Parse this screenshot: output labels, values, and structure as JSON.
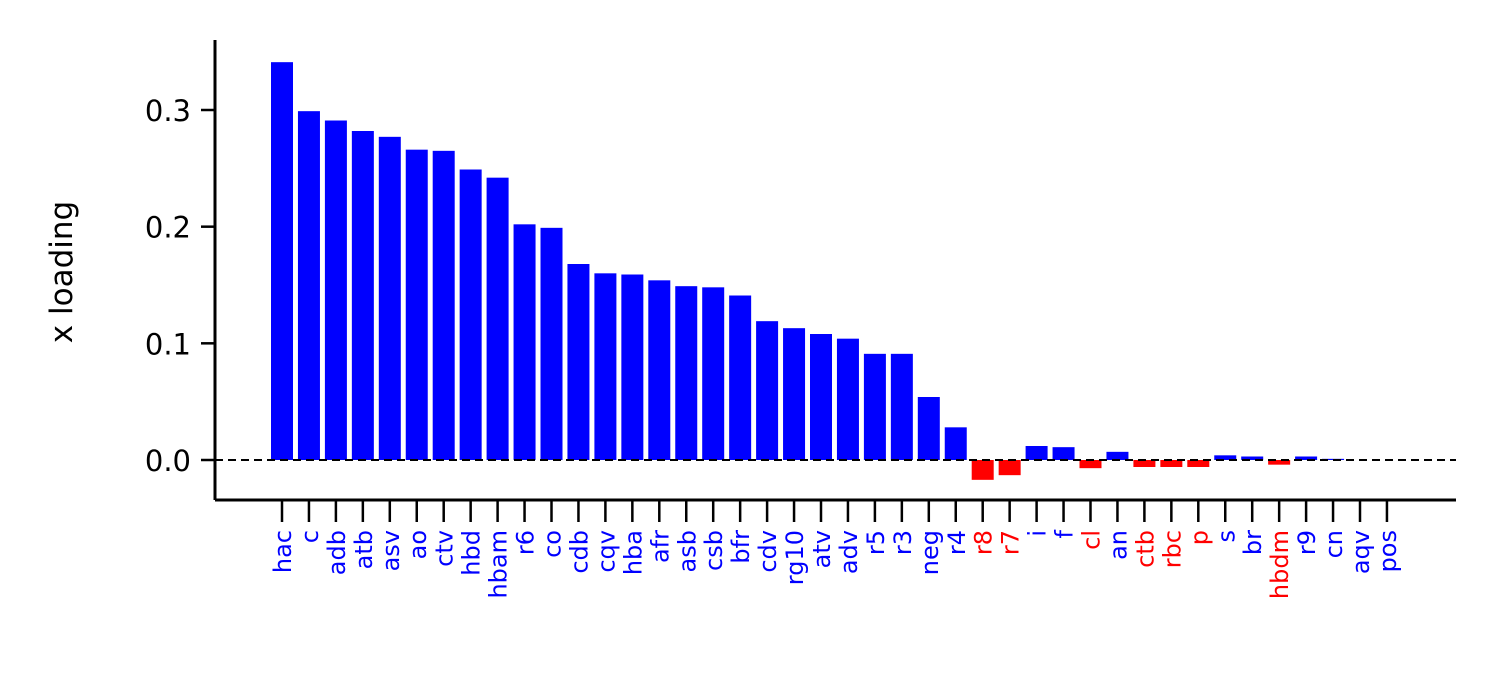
{
  "chart_data": {
    "type": "bar",
    "title": "",
    "xlabel": "",
    "ylabel": "x loading",
    "ylim": [
      -0.035,
      0.36
    ],
    "yticks": [
      0.0,
      0.1,
      0.2,
      0.3
    ],
    "ytick_labels": [
      "0.0",
      "0.1",
      "0.2",
      "0.3"
    ],
    "reference_line": {
      "y": 0.0,
      "style": "dashed"
    },
    "colors": {
      "positive": "#0000ff",
      "negative": "#ff0000",
      "axis": "#000000"
    },
    "categories": [
      "hac",
      "c",
      "adb",
      "atb",
      "asv",
      "ao",
      "ctv",
      "hbd",
      "hbam",
      "r6",
      "co",
      "cdb",
      "cqv",
      "hba",
      "afr",
      "asb",
      "csb",
      "bfr",
      "cdv",
      "rg10",
      "atv",
      "adv",
      "r5",
      "r3",
      "neg",
      "r4",
      "r8",
      "r7",
      "i",
      "f",
      "cl",
      "an",
      "ctb",
      "rbc",
      "p",
      "s",
      "br",
      "hbdm",
      "r9",
      "cn",
      "aqv",
      "pos"
    ],
    "values": [
      0.341,
      0.299,
      0.291,
      0.282,
      0.277,
      0.266,
      0.265,
      0.249,
      0.242,
      0.202,
      0.199,
      0.168,
      0.16,
      0.159,
      0.154,
      0.149,
      0.148,
      0.141,
      0.119,
      0.113,
      0.108,
      0.104,
      0.091,
      0.091,
      0.054,
      0.028,
      -0.017,
      -0.013,
      0.012,
      0.011,
      -0.007,
      0.007,
      -0.006,
      -0.006,
      -0.006,
      0.004,
      0.003,
      -0.004,
      0.003,
      0.001,
      0.0,
      0.0
    ]
  }
}
